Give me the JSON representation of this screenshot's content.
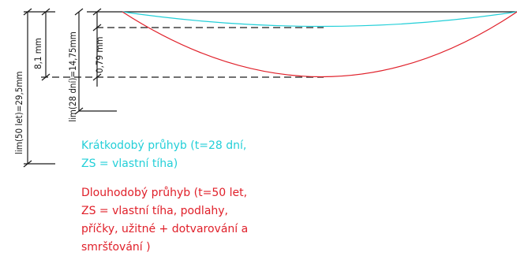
{
  "dimensions": {
    "lim_50": "lim(50 let)=29,5mm",
    "lim_28": "lim(28 dní)=14,75mm",
    "d1": "8,1 mm",
    "d2": "0,79 mm"
  },
  "legend": {
    "short_term": {
      "color": "#23cfd8",
      "lines": [
        "Krátkodobý průhyb (t=28 dní,",
        "ZS = vlastní tíha)"
      ]
    },
    "long_term": {
      "color": "#e0202a",
      "lines": [
        "Dlouhodobý průhyb (t=50 let,",
        "ZS = vlastní tíha, podlahy,",
        "příčky, užitné + dotvarování a",
        "smršťování )"
      ]
    }
  },
  "colors": {
    "line": "#1a1a1a",
    "short_term_curve": "#23cfd8",
    "long_term_curve": "#e0202a"
  }
}
